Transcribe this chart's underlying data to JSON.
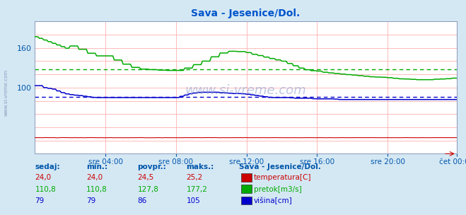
{
  "title": "Sava - Jesenice/Dol.",
  "bg_color": "#d4e8f4",
  "plot_bg_color": "#ffffff",
  "grid_color": "#ffb0b0",
  "xlabel_color": "#0055aa",
  "title_color": "#0055cc",
  "xlabels": [
    "sre 04:00",
    "sre 08:00",
    "sre 12:00",
    "sre 16:00",
    "sre 20:00",
    "čet 00:00"
  ],
  "n_points": 288,
  "temp_color": "#cc0000",
  "pretok_color": "#00aa00",
  "visina_color": "#0000cc",
  "pretok_avg": 127.8,
  "visina_avg": 86,
  "ymin": 0,
  "ymax": 200,
  "ytick_labels": [
    "100",
    "160"
  ],
  "ytick_vals": [
    100,
    160
  ],
  "watermark": "www.si-vreme.com",
  "legend_title": "Sava - Jesenice/Dol.",
  "legend_items": [
    {
      "label": "temperatura[C]",
      "color": "#cc0000"
    },
    {
      "label": "pretok[m3/s]",
      "color": "#00aa00"
    },
    {
      "label": "višina[cm]",
      "color": "#0000cc"
    }
  ],
  "table_headers": [
    "sedaj:",
    "min.:",
    "povpr.:",
    "maks.:"
  ],
  "table_data": [
    [
      "24,0",
      "24,0",
      "24,5",
      "25,2"
    ],
    [
      "110,8",
      "110,8",
      "127,8",
      "177,2"
    ],
    [
      "79",
      "79",
      "86",
      "105"
    ]
  ],
  "table_row_colors": [
    "#cc0000",
    "#00aa00",
    "#0000cc"
  ]
}
